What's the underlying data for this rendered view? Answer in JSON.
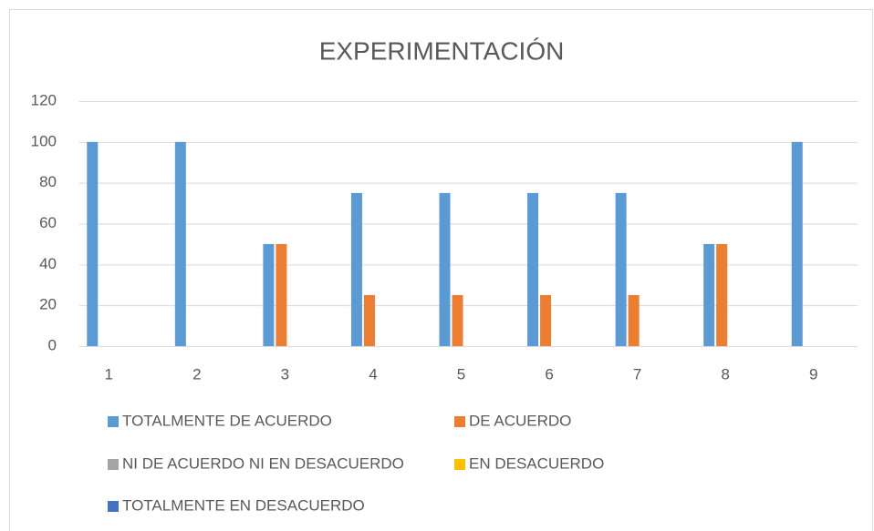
{
  "chart_data": {
    "type": "bar",
    "title": "EXPERIMENTACIÓN",
    "categories": [
      "1",
      "2",
      "3",
      "4",
      "5",
      "6",
      "7",
      "8",
      "9"
    ],
    "series": [
      {
        "name": "TOTALMENTE DE ACUERDO",
        "color": "#5b9bd5",
        "values": [
          100,
          100,
          50,
          75,
          75,
          75,
          75,
          50,
          100
        ]
      },
      {
        "name": "DE ACUERDO",
        "color": "#ed7d31",
        "values": [
          0,
          0,
          50,
          25,
          25,
          25,
          25,
          50,
          0
        ]
      },
      {
        "name": "NI DE ACUERDO NI EN DESACUERDO",
        "color": "#a5a5a5",
        "values": [
          0,
          0,
          0,
          0,
          0,
          0,
          0,
          0,
          0
        ]
      },
      {
        "name": "EN DESACUERDO",
        "color": "#ffc000",
        "values": [
          0,
          0,
          0,
          0,
          0,
          0,
          0,
          0,
          0
        ]
      },
      {
        "name": "TOTALMENTE EN DESACUERDO",
        "color": "#4472c4",
        "values": [
          0,
          0,
          0,
          0,
          0,
          0,
          0,
          0,
          0
        ]
      }
    ],
    "ylim": [
      0,
      120
    ],
    "yticks": [
      0,
      20,
      40,
      60,
      80,
      100,
      120
    ],
    "grid": true,
    "legend": "bottom"
  }
}
